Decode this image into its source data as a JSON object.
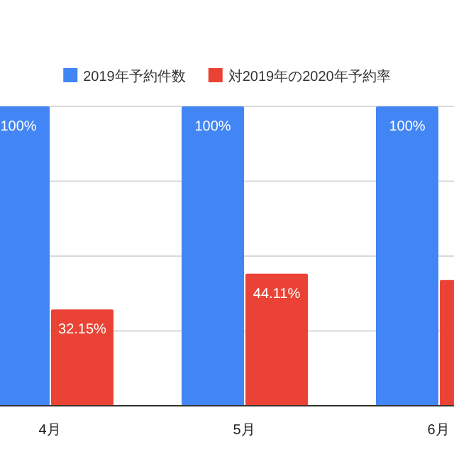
{
  "chart_data": {
    "type": "bar",
    "categories": [
      "4月",
      "5月",
      "6月"
    ],
    "series": [
      {
        "name": "2019年予約件数",
        "color": "#4285f4",
        "values": [
          100,
          100,
          100
        ],
        "value_labels": [
          "100%",
          "100%",
          "100%"
        ]
      },
      {
        "name": "対2019年の2020年予約率",
        "color": "#ea4335",
        "values": [
          32.15,
          44.11,
          42
        ],
        "value_labels": [
          "32.15%",
          "44.11%",
          null
        ]
      }
    ],
    "ylim": [
      0,
      100
    ],
    "yticks": [
      {
        "value": 0,
        "label": null
      },
      {
        "value": 25,
        "label": null
      },
      {
        "value": 50,
        "label": null
      },
      {
        "value": 75,
        "label": null
      },
      {
        "value": 100,
        "label": null
      }
    ],
    "tick_labels": "x",
    "grid": "y",
    "legend": "top"
  }
}
